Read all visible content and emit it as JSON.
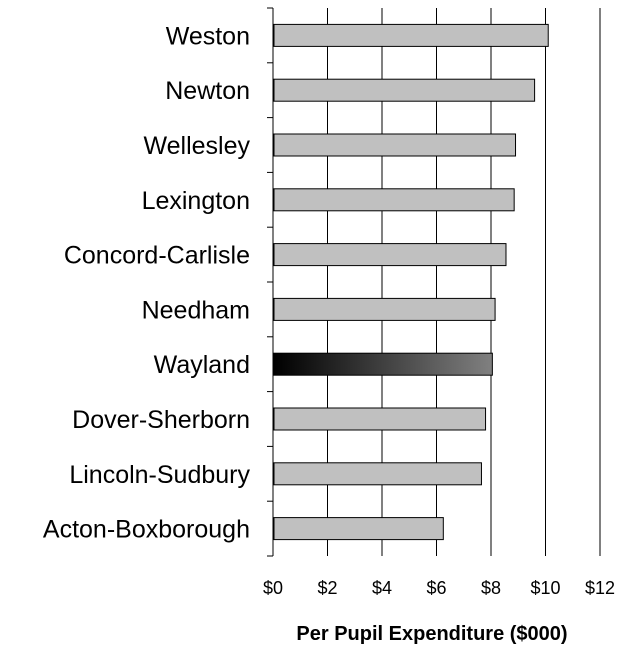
{
  "chart_data": {
    "type": "bar",
    "orientation": "horizontal",
    "categories": [
      "Weston",
      "Newton",
      "Wellesley",
      "Lexington",
      "Concord-Carlisle",
      "Needham",
      "Wayland",
      "Dover-Sherborn",
      "Lincoln-Sudbury",
      "Acton-Boxborough"
    ],
    "values": [
      10.1,
      9.6,
      8.9,
      8.85,
      8.55,
      8.15,
      8.05,
      7.8,
      7.65,
      6.25
    ],
    "highlight_category": "Wayland",
    "xlim": [
      0,
      12
    ],
    "x_ticks": [
      0,
      2,
      4,
      6,
      8,
      10,
      12
    ],
    "x_tick_labels": [
      "$0",
      "$2",
      "$4",
      "$6",
      "$8",
      "$10",
      "$12"
    ],
    "xlabel": "Per Pupil Expenditure ($000)",
    "ylabel": "",
    "title": "",
    "grid": "vertical",
    "colors": {
      "bar": "#c0c0c0",
      "bar_outline": "#000000",
      "highlight_start": "#000000",
      "highlight_end": "#808080",
      "gridline": "#000000"
    }
  }
}
